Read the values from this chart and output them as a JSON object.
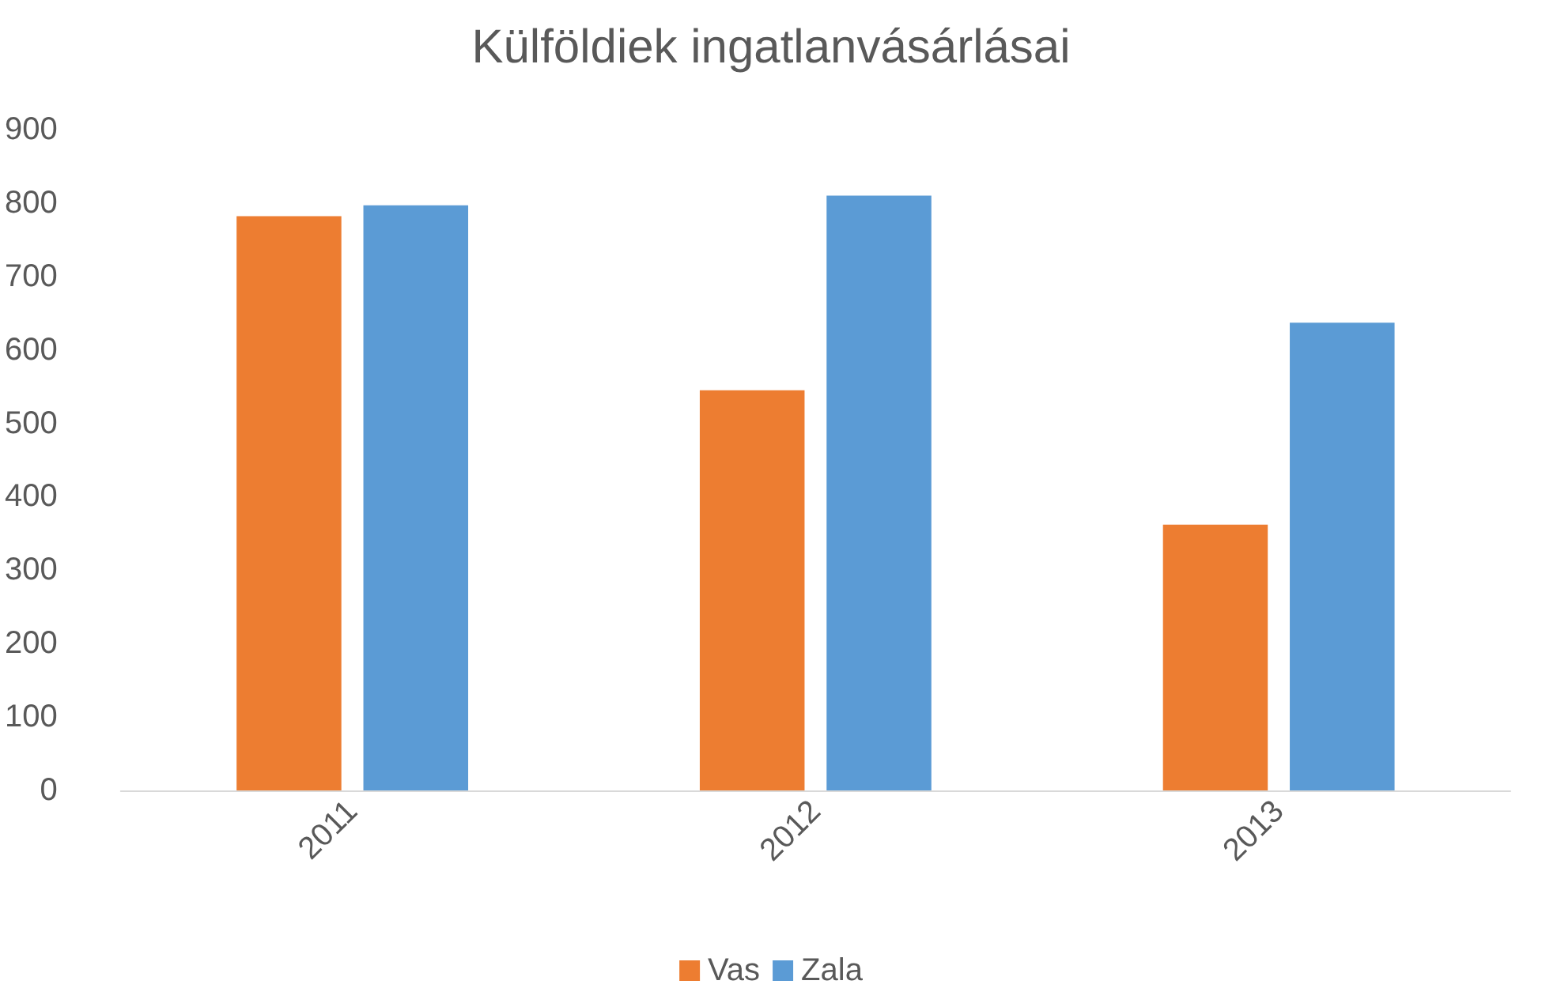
{
  "chart_data": {
    "type": "bar",
    "title": "Külföldiek ingatlanvásárlásai",
    "categories": [
      "2011",
      "2012",
      "2013"
    ],
    "series": [
      {
        "name": "Vas",
        "color": "#ed7d31",
        "values": [
          782,
          545,
          362
        ]
      },
      {
        "name": "Zala",
        "color": "#5b9bd5",
        "values": [
          797,
          810,
          637
        ]
      }
    ],
    "ylim": [
      0,
      900
    ],
    "yticks": [
      0,
      100,
      200,
      300,
      400,
      500,
      600,
      700,
      800,
      900
    ],
    "grid": false,
    "legend": "bottom"
  }
}
